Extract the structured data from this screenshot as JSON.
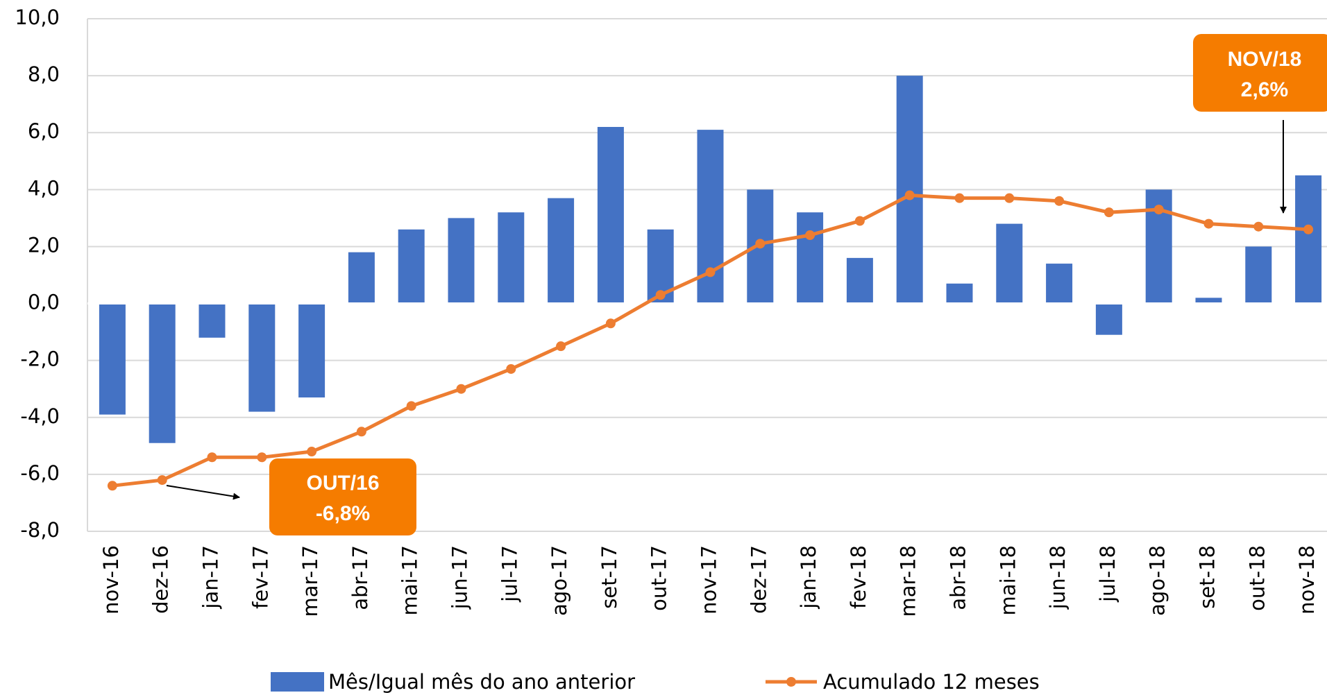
{
  "chart_data": {
    "type": "bar_line",
    "categories": [
      "nov-16",
      "dez-16",
      "jan-17",
      "fev-17",
      "mar-17",
      "abr-17",
      "mai-17",
      "jun-17",
      "jul-17",
      "ago-17",
      "set-17",
      "out-17",
      "nov-17",
      "dez-17",
      "jan-18",
      "fev-18",
      "mar-18",
      "abr-18",
      "mai-18",
      "jun-18",
      "jul-18",
      "ago-18",
      "set-18",
      "out-18",
      "nov-18"
    ],
    "series": [
      {
        "name": "Mês/Igual mês do ano anterior",
        "type": "bar",
        "color": "#4472c4",
        "values": [
          -3.9,
          -4.9,
          -1.2,
          -3.8,
          -3.3,
          1.8,
          2.6,
          3.0,
          3.2,
          3.7,
          6.2,
          2.6,
          6.1,
          4.0,
          3.2,
          1.6,
          8.0,
          0.7,
          2.8,
          1.4,
          -1.1,
          4.0,
          0.2,
          2.0,
          4.5
        ]
      },
      {
        "name": "Acumulado 12 meses",
        "type": "line",
        "color": "#ed7d31",
        "values": [
          -6.4,
          -6.2,
          -5.4,
          -5.4,
          -5.2,
          -4.5,
          -3.6,
          -3.0,
          -2.3,
          -1.5,
          -0.7,
          0.3,
          1.1,
          2.1,
          2.4,
          2.9,
          3.8,
          3.7,
          3.7,
          3.6,
          3.2,
          3.3,
          2.8,
          2.7,
          2.6
        ]
      }
    ],
    "ylim": [
      -8,
      10
    ],
    "yticks": [
      {
        "value": -8,
        "label": "-8,0"
      },
      {
        "value": -6,
        "label": "-6,0"
      },
      {
        "value": -4,
        "label": "-4,0"
      },
      {
        "value": -2,
        "label": "-2,0"
      },
      {
        "value": 0,
        "label": "0,0"
      },
      {
        "value": 2,
        "label": "2,0"
      },
      {
        "value": 4,
        "label": "4,0"
      },
      {
        "value": 6,
        "label": "6,0"
      },
      {
        "value": 8,
        "label": "8,0"
      },
      {
        "value": 10,
        "label": "10,0"
      }
    ],
    "grid": true,
    "legend": "bottom",
    "annotations": [
      {
        "lines": [
          "OUT/16",
          "-6,8%"
        ],
        "color": "#f57c00"
      },
      {
        "lines": [
          "NOV/18",
          "2,6%"
        ],
        "color": "#f57c00"
      }
    ]
  }
}
